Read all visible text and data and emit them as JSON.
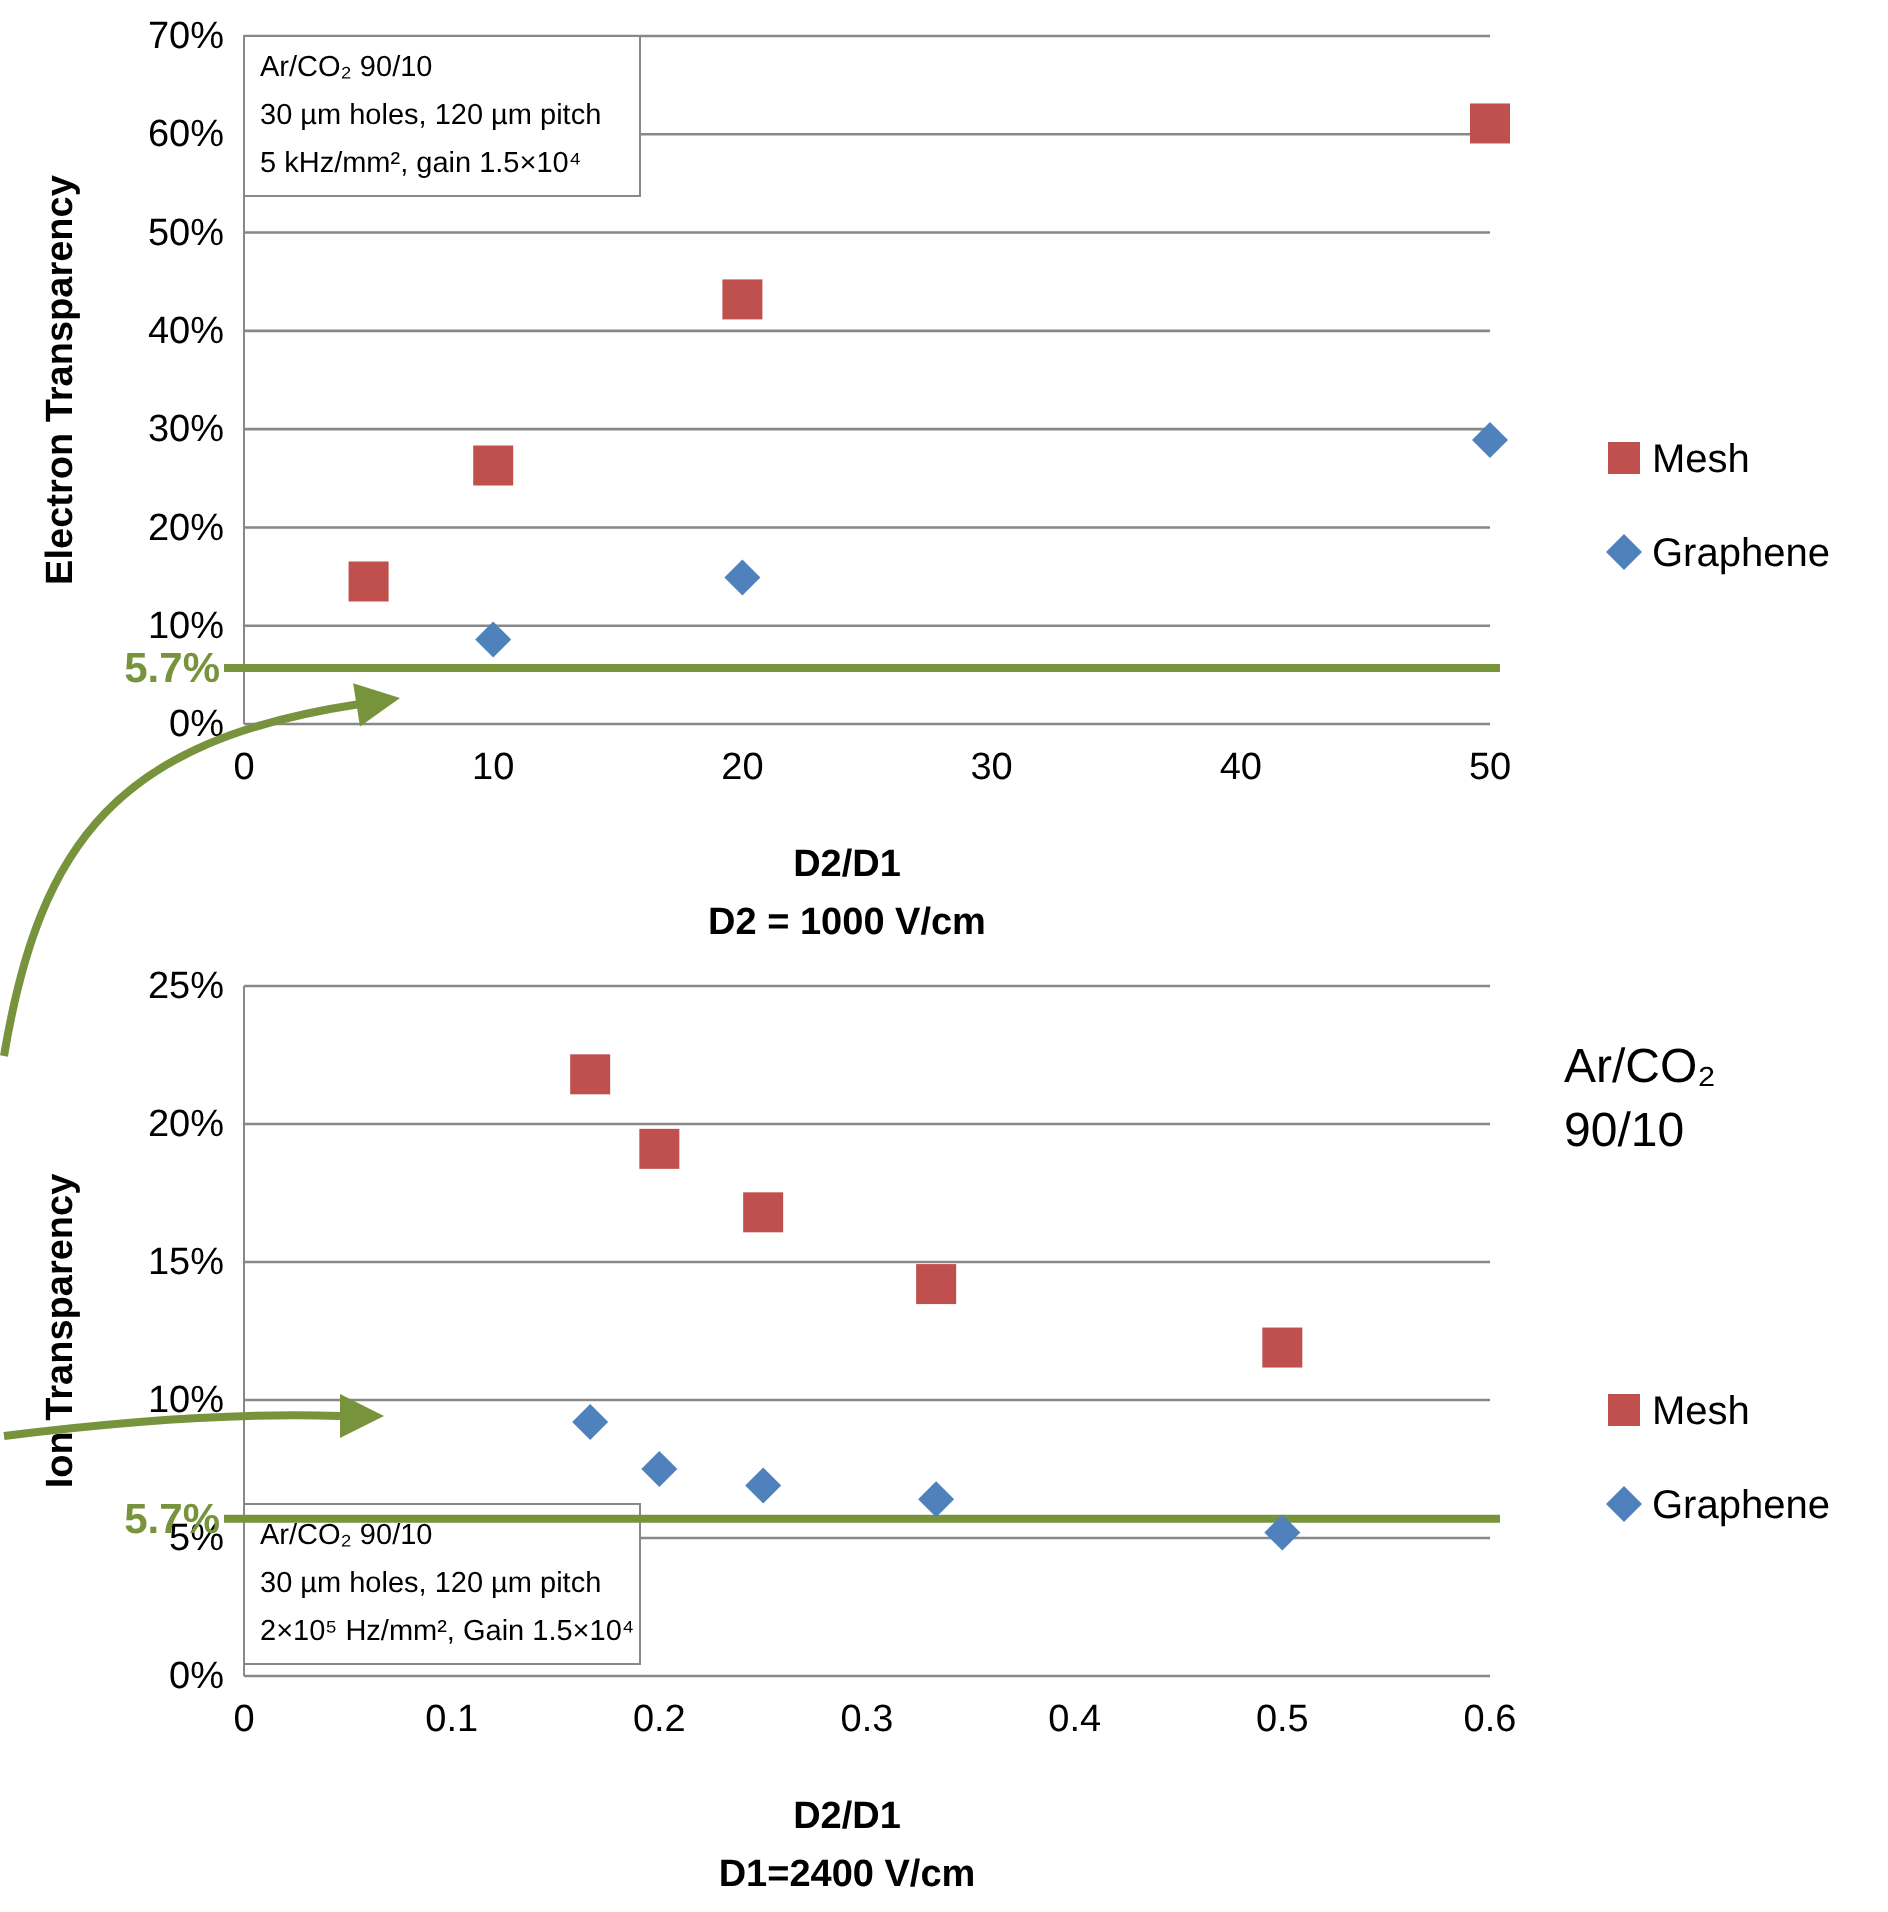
{
  "chart_data": [
    {
      "type": "scatter",
      "xlabel": "D2/D1\nD2 = 1000 V/cm",
      "ylabel": "Electron Transparency",
      "xlim": [
        0,
        50
      ],
      "xticks": [
        0,
        10,
        20,
        30,
        40,
        50
      ],
      "ylim": [
        0,
        70
      ],
      "yticks": [
        {
          "value": 0,
          "label": "0%"
        },
        {
          "value": 10,
          "label": "10%"
        },
        {
          "value": 20,
          "label": "20%"
        },
        {
          "value": 30,
          "label": "30%"
        },
        {
          "value": 40,
          "label": "40%"
        },
        {
          "value": 50,
          "label": "50%"
        },
        {
          "value": 60,
          "label": "60%"
        },
        {
          "value": 70,
          "label": "70%"
        }
      ],
      "grid": "y",
      "legend": "right",
      "series": [
        {
          "name": "Mesh",
          "color": "#c0504d",
          "marker": "square",
          "x": [
            5,
            10,
            20,
            50
          ],
          "values": [
            14.5,
            26.3,
            43.2,
            61.1
          ]
        },
        {
          "name": "Graphene",
          "color": "#4f81bd",
          "marker": "diamond",
          "x": [
            10,
            20,
            50
          ],
          "values": [
            8.6,
            14.9,
            28.9
          ]
        }
      ],
      "ref_lines": [
        {
          "axis": "y",
          "value": 5.7,
          "label": "5.7%",
          "color": "#77933c"
        }
      ],
      "annotations": [
        "Ar/CO₂ 90/10\n30 µm holes, 120 µm pitch\n5 kHz/mm², gain 1.5×10⁴"
      ]
    },
    {
      "type": "scatter",
      "xlabel": "D2/D1\nD1=2400 V/cm",
      "ylabel": "Ion Transparency",
      "xlim": [
        0,
        0.6
      ],
      "xticks": [
        0,
        0.1,
        0.2,
        0.3,
        0.4,
        0.5,
        0.6
      ],
      "ylim": [
        0,
        25
      ],
      "yticks": [
        {
          "value": 0,
          "label": "0%"
        },
        {
          "value": 5,
          "label": "5%"
        },
        {
          "value": 10,
          "label": "10%"
        },
        {
          "value": 15,
          "label": "15%"
        },
        {
          "value": 20,
          "label": "20%"
        },
        {
          "value": 25,
          "label": "25%"
        }
      ],
      "grid": "y",
      "legend": "right",
      "series": [
        {
          "name": "Mesh",
          "color": "#c0504d",
          "marker": "square",
          "x": [
            0.1667,
            0.2,
            0.25,
            0.3333,
            0.5
          ],
          "values": [
            21.8,
            19.1,
            16.8,
            14.2,
            11.9
          ]
        },
        {
          "name": "Graphene",
          "color": "#4f81bd",
          "marker": "diamond",
          "x": [
            0.1667,
            0.2,
            0.25,
            0.3333,
            0.5
          ],
          "values": [
            9.2,
            7.5,
            6.9,
            6.4,
            5.2
          ]
        }
      ],
      "ref_lines": [
        {
          "axis": "y",
          "value": 5.7,
          "label": "5.7%",
          "color": "#77933c"
        }
      ],
      "annotations": [
        "Ar/CO₂ 90/10\n30 µm holes, 120 µm pitch\n2×10⁵ Hz/mm², Gain 1.5×10⁴",
        "Ar/CO₂\n90/10"
      ]
    }
  ]
}
